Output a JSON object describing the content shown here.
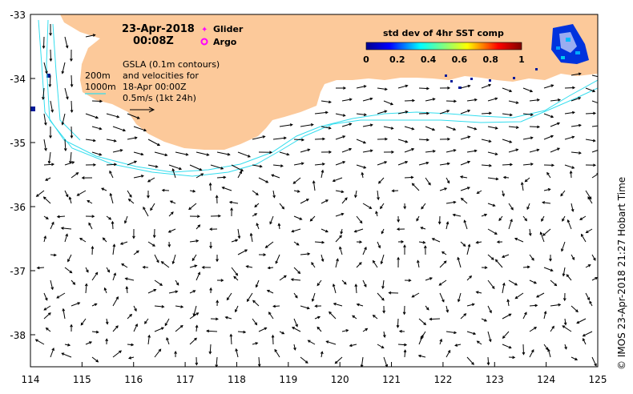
{
  "map": {
    "date_line": "23-Apr-2018",
    "time_line": "00:08Z",
    "legend": {
      "glider_label": "Glider",
      "argo_label": "Argo",
      "glider_color": "#ff00ff",
      "argo_color": "#ff00ff"
    },
    "colorbar": {
      "title": "std dev of 4hr SST comp",
      "ticks": [
        "0",
        "0.2",
        "0.4",
        "0.6",
        "0.8",
        "1"
      ]
    },
    "contours": {
      "label_200": "200m",
      "label_1000": "1000m",
      "color": "#33ddee"
    },
    "gsla_lines": [
      "GSLA (0.1m contours)",
      "and velocities for",
      "18-Apr 00:00Z",
      "0.5m/s (1kt 24h)"
    ],
    "credit": "© IMOS 23-Apr-2018 21:27 Hobart Time",
    "land_color": "#fcc99a",
    "x_ticks": [
      "114",
      "115",
      "116",
      "117",
      "118",
      "119",
      "120",
      "121",
      "122",
      "123",
      "124",
      "125"
    ],
    "y_ticks": [
      "-33",
      "-34",
      "-35",
      "-36",
      "-37",
      "-38"
    ]
  }
}
